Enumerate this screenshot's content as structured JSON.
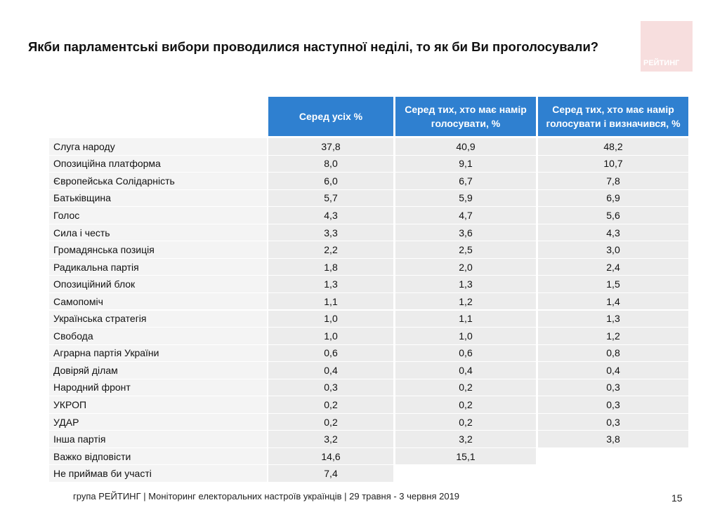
{
  "header": {
    "title": "Якби парламентські вибори проводилися наступної неділі, то як би Ви проголосували?",
    "logo": "РЕЙТИНГ"
  },
  "table": {
    "columns": [
      "Серед усіх %",
      "Серед тих, хто має намір голосувати, %",
      "Серед тих, хто має намір голосувати і визначився, %"
    ],
    "rows": [
      {
        "label": "Слуга народу",
        "values": [
          "37,8",
          "40,9",
          "48,2"
        ]
      },
      {
        "label": "Опозиційна платформа",
        "values": [
          "8,0",
          "9,1",
          "10,7"
        ]
      },
      {
        "label": "Європейська Солідарність",
        "values": [
          "6,0",
          "6,7",
          "7,8"
        ]
      },
      {
        "label": "Батьківщина",
        "values": [
          "5,7",
          "5,9",
          "6,9"
        ]
      },
      {
        "label": "Голос",
        "values": [
          "4,3",
          "4,7",
          "5,6"
        ]
      },
      {
        "label": "Сила і честь",
        "values": [
          "3,3",
          "3,6",
          "4,3"
        ]
      },
      {
        "label": "Громадянська позиція",
        "values": [
          "2,2",
          "2,5",
          "3,0"
        ]
      },
      {
        "label": "Радикальна партія",
        "values": [
          "1,8",
          "2,0",
          "2,4"
        ]
      },
      {
        "label": "Опозиційний блок",
        "values": [
          "1,3",
          "1,3",
          "1,5"
        ]
      },
      {
        "label": "Самопоміч",
        "values": [
          "1,1",
          "1,2",
          "1,4"
        ]
      },
      {
        "label": "Українська стратегія",
        "values": [
          "1,0",
          "1,1",
          "1,3"
        ]
      },
      {
        "label": "Свобода",
        "values": [
          "1,0",
          "1,0",
          "1,2"
        ]
      },
      {
        "label": "Аграрна партія України",
        "values": [
          "0,6",
          "0,6",
          "0,8"
        ]
      },
      {
        "label": "Довіряй ділам",
        "values": [
          "0,4",
          "0,4",
          "0,4"
        ]
      },
      {
        "label": "Народний фронт",
        "values": [
          "0,3",
          "0,2",
          "0,3"
        ]
      },
      {
        "label": "УКРОП",
        "values": [
          "0,2",
          "0,2",
          "0,3"
        ]
      },
      {
        "label": "УДАР",
        "values": [
          "0,2",
          "0,2",
          "0,3"
        ]
      },
      {
        "label": "Інша партія",
        "values": [
          "3,2",
          "3,2",
          "3,8"
        ]
      },
      {
        "label": "Важко відповісти",
        "values": [
          "14,6",
          "15,1"
        ]
      },
      {
        "label": "Не приймав би участі",
        "values": [
          "7,4"
        ]
      }
    ]
  },
  "footer": {
    "source": "група РЕЙТИНГ | Моніторинг електоральних настроїв українців  | 29 травня - 3 червня 2019",
    "page": "15"
  }
}
